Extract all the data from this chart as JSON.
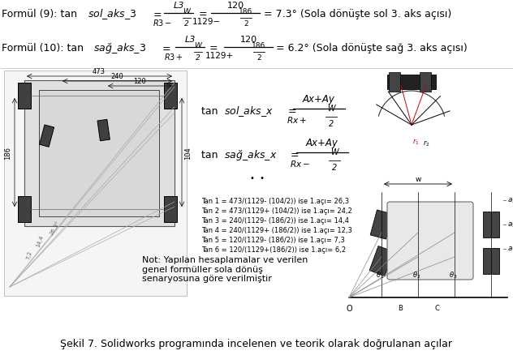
{
  "background_color": "#ffffff",
  "caption": "Şekil 7. Solidworks programında incelenen ve teorik olarak doğrulanan açılar",
  "tan_lines": [
    "Tan 1 = 473/(1129- (104/2)) ise 1.açı= 26,3",
    "Tan 2 = 473/(1129+ (104/2)) ise 1.açı= 24,2",
    "Tan 3 = 240/(1129- (186/2)) ise 1.açı= 14,4",
    "Tan 4 = 240/(1129+ (186/2)) ise 1.açı= 12,3",
    "Tan 5 = 120/(1129- (186/2)) ise 1.açı= 7,3",
    "Tan 6 = 120/(1129+(186/2)) ise 1.açı= 6,2"
  ],
  "note_text": "Not: Yapılan hesaplamalar ve verilen\ngenel formüller sola dönüş\nsenaryosuna göre verilmiştir"
}
